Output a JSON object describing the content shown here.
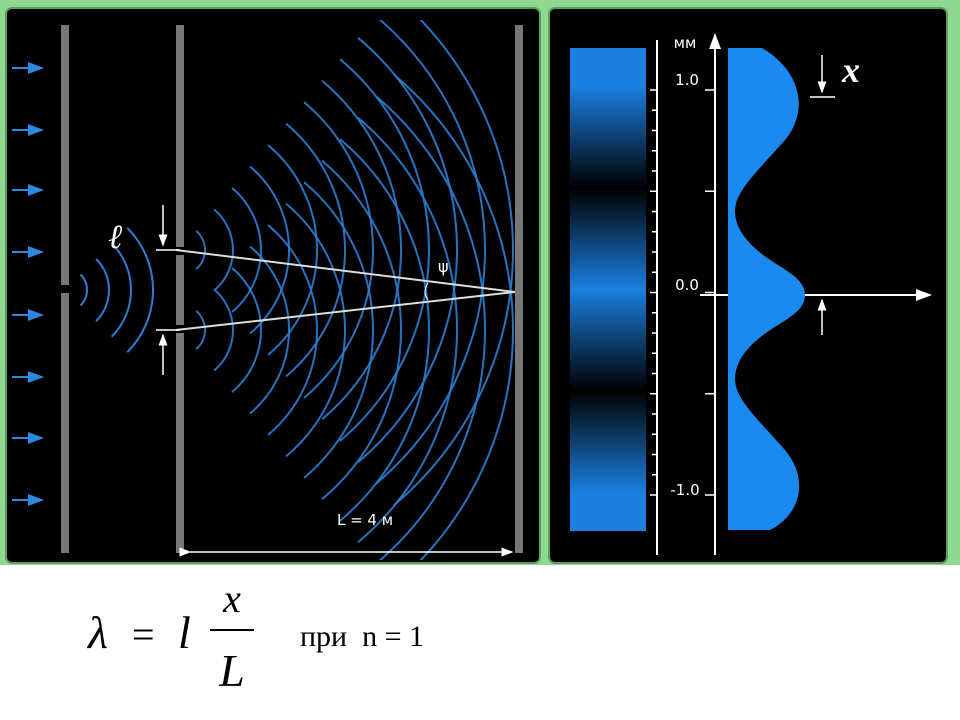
{
  "left_panel": {
    "slit_width_label": "ℓ",
    "angle_label": "ψ",
    "distance_label": "L = 4 м"
  },
  "right_panel": {
    "unit": "мм",
    "scale_labels": [
      "1.0",
      "0.0",
      "-1.0"
    ],
    "shift_label": "x"
  },
  "formula": {
    "lhs": "λ",
    "equals": "=",
    "l": "l",
    "numerator": "x",
    "denominator": "L",
    "condition": "при  n = 1"
  }
}
